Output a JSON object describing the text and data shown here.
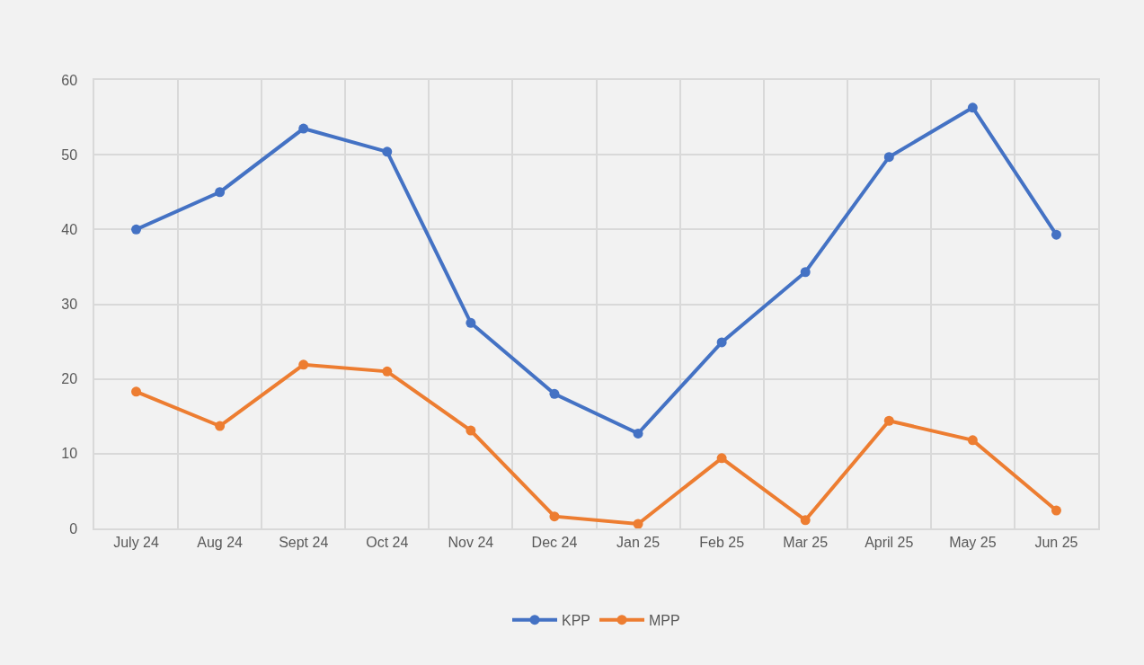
{
  "chart_data": {
    "type": "line",
    "categories": [
      "July 24",
      "Aug 24",
      "Sept 24",
      "Oct 24",
      "Nov 24",
      "Dec 24",
      "Jan 25",
      "Feb 25",
      "Mar 25",
      "April 25",
      "May 25",
      "Jun 25"
    ],
    "series": [
      {
        "name": "KPP",
        "color": "#4472c4",
        "values": [
          40,
          45,
          53.5,
          50.4,
          27.5,
          18.0,
          12.7,
          24.9,
          34.3,
          49.7,
          56.3,
          39.3
        ]
      },
      {
        "name": "MPP",
        "color": "#ed7d31",
        "values": [
          18.3,
          13.7,
          21.9,
          21.0,
          13.1,
          1.6,
          0.6,
          9.4,
          1.1,
          14.4,
          11.8,
          2.4
        ]
      }
    ],
    "ylim": [
      0,
      60
    ],
    "yticks": [
      0,
      10,
      20,
      30,
      40,
      50,
      60
    ],
    "grid": true,
    "legend": "bottom",
    "marker": "circle",
    "line_style": "solid"
  }
}
